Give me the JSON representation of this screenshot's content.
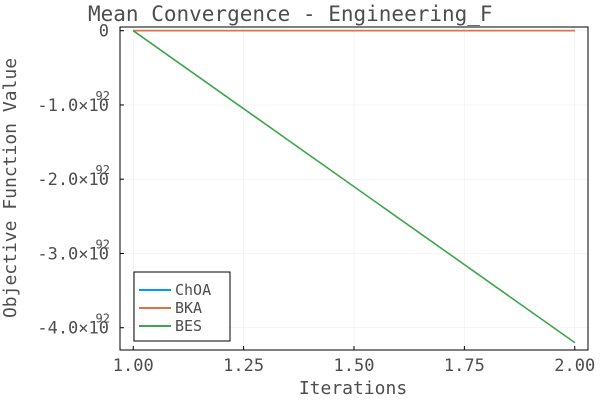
{
  "chart_data": {
    "type": "line",
    "title": "Mean Convergence - Engineering_F",
    "xlabel": "Iterations",
    "ylabel": "Objective Function Value",
    "xlim": [
      0.97,
      2.03
    ],
    "ylim": [
      -4.3e+92,
      5e+90
    ],
    "grid": true,
    "legend_position": "bottom-left",
    "x_ticks": [
      {
        "value": 1.0,
        "label": "1.00"
      },
      {
        "value": 1.25,
        "label": "1.25"
      },
      {
        "value": 1.5,
        "label": "1.50"
      },
      {
        "value": 1.75,
        "label": "1.75"
      },
      {
        "value": 2.0,
        "label": "2.00"
      }
    ],
    "y_ticks": [
      {
        "value": 0,
        "label": "0",
        "exp": ""
      },
      {
        "value": -1e+92,
        "label": "-1.0×10",
        "exp": "92"
      },
      {
        "value": -2e+92,
        "label": "-2.0×10",
        "exp": "92"
      },
      {
        "value": -3e+92,
        "label": "-3.0×10",
        "exp": "92"
      },
      {
        "value": -4e+92,
        "label": "-4.0×10",
        "exp": "92"
      }
    ],
    "series": [
      {
        "name": "ChOA",
        "color": "#009AFA",
        "x": [
          1,
          2
        ],
        "y": [
          0,
          0
        ]
      },
      {
        "name": "BKA",
        "color": "#E36F47",
        "x": [
          1,
          2
        ],
        "y": [
          0,
          0
        ]
      },
      {
        "name": "BES",
        "color": "#3EA44E",
        "x": [
          1,
          2
        ],
        "y": [
          0,
          -4.2e+92
        ]
      }
    ]
  }
}
